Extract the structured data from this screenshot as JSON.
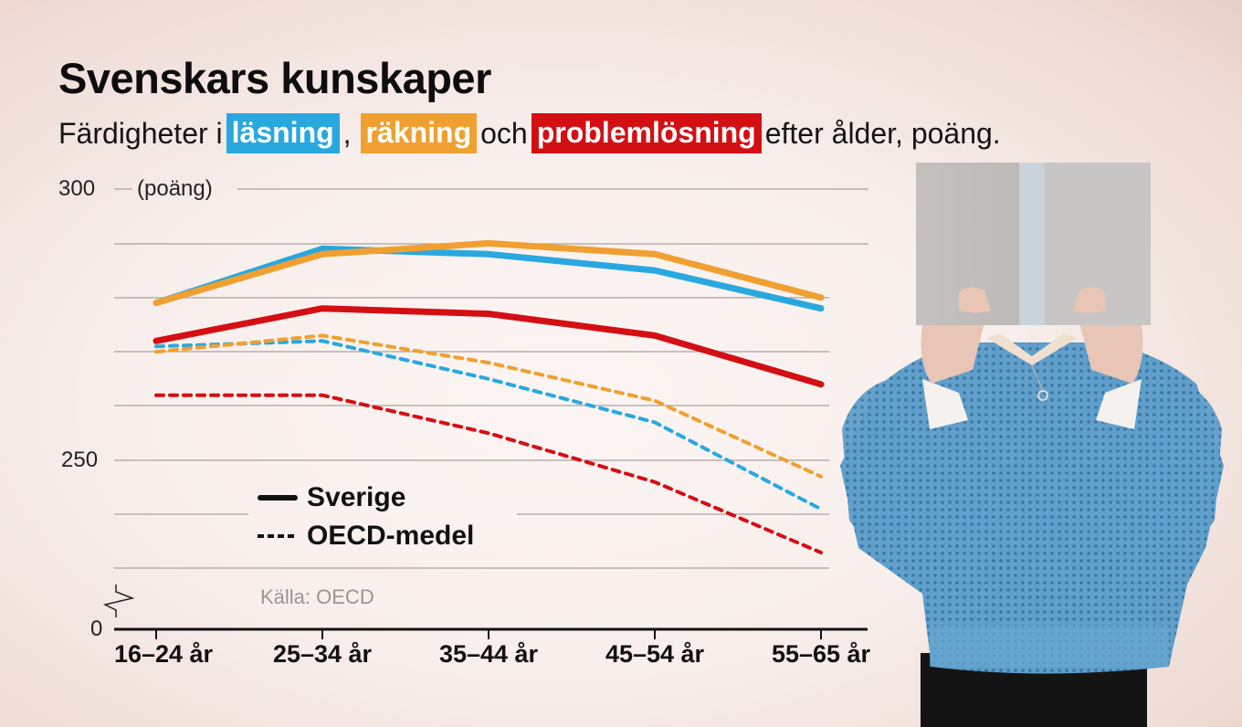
{
  "header": {
    "title": "Svenskars kunskaper",
    "subtitle_parts": {
      "prefix": "Färdigheter i",
      "reading": "läsning",
      "comma": ",",
      "numeracy": "räkning",
      "and": "och",
      "problem_solving": "problemlösning",
      "suffix": "efter ålder, poäng."
    }
  },
  "colors": {
    "reading": "#29a8e0",
    "numeracy": "#f0a030",
    "problem_solving": "#d40f14",
    "gridline": "#a9a3a1",
    "axis": "#111111"
  },
  "axis": {
    "y_unit": "(poäng)",
    "y_top_label": "300",
    "y_mid_label": "250",
    "y_zero_label": "0"
  },
  "legend": {
    "solid_label": "Sverige",
    "dashed_label": "OECD-medel"
  },
  "source": "Källa: OECD",
  "photo": {
    "description": "Person in blue knitted sweater holding an open grey book in front of face"
  },
  "chart_data": {
    "type": "line",
    "title": "Svenskars kunskaper",
    "subtitle": "Färdigheter i läsning, räkning och problemlösning efter ålder, poäng.",
    "xlabel": "",
    "ylabel": "(poäng)",
    "categories": [
      "16–24 år",
      "25–34 år",
      "35–44 år",
      "45–54 år",
      "55–65 år"
    ],
    "ylim": [
      230,
      300
    ],
    "y_axis_break": true,
    "y_ticks_labeled": [
      0,
      250,
      300
    ],
    "gridlines_at": [
      230,
      240,
      250,
      260,
      270,
      280,
      290,
      300
    ],
    "grid": true,
    "legend_position": "lower-left inside plot",
    "series": [
      {
        "name": "Sverige – läsning",
        "color": "#29a8e0",
        "style": "solid",
        "values": [
          279,
          289,
          288,
          285,
          278
        ]
      },
      {
        "name": "Sverige – räkning",
        "color": "#f0a030",
        "style": "solid",
        "values": [
          279,
          288,
          290,
          288,
          280
        ]
      },
      {
        "name": "Sverige – problemlösning",
        "color": "#d40f14",
        "style": "solid",
        "values": [
          272,
          278,
          277,
          273,
          264
        ]
      },
      {
        "name": "OECD-medel – läsning",
        "color": "#29a8e0",
        "style": "dashed",
        "values": [
          271,
          272,
          265,
          257,
          241
        ]
      },
      {
        "name": "OECD-medel – räkning",
        "color": "#f0a030",
        "style": "dashed",
        "values": [
          270,
          273,
          268,
          261,
          247
        ]
      },
      {
        "name": "OECD-medel – problemlösning",
        "color": "#d40f14",
        "style": "dashed",
        "values": [
          262,
          262,
          255,
          246,
          233
        ]
      }
    ],
    "source": "Källa: OECD"
  }
}
